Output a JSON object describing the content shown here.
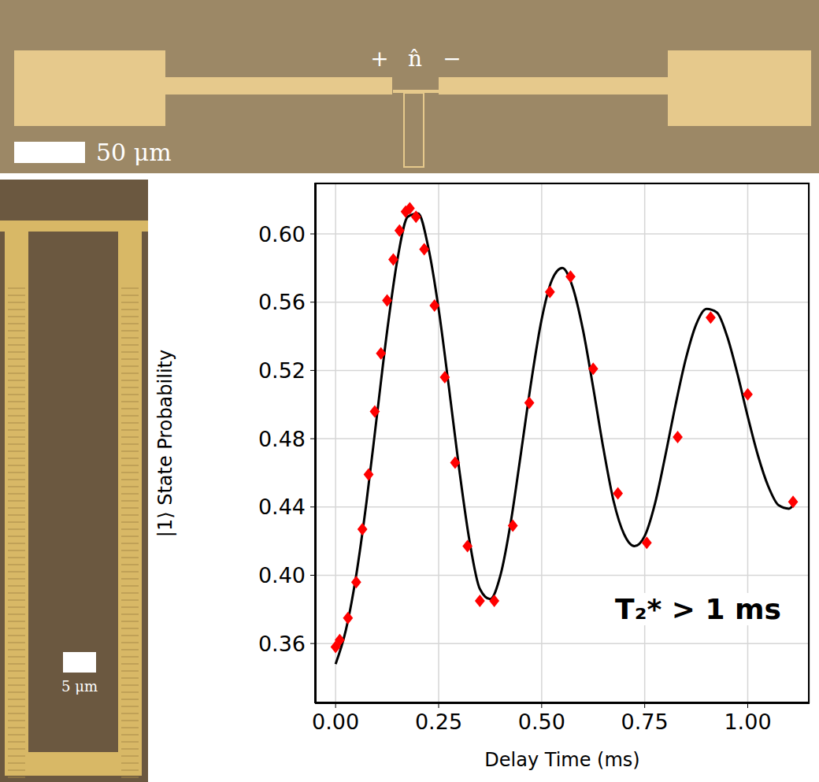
{
  "top_image": {
    "labels": [
      "+",
      "n̂",
      "−"
    ],
    "scale_bar": "50 μm"
  },
  "left_image": {
    "scale_bar": "5 μm"
  },
  "chart_data": {
    "type": "scatter",
    "x_label": "Delay Time (ms)",
    "y_label": "|1⟩ State Probability",
    "annotation": "T₂* > 1 ms",
    "xlim": [
      -0.05,
      1.15
    ],
    "ylim": [
      0.325,
      0.63
    ],
    "xticks": [
      {
        "value": 0,
        "label": "0.00"
      },
      {
        "value": 0.25,
        "label": "0.25"
      },
      {
        "value": 0.5,
        "label": "0.50"
      },
      {
        "value": 0.75,
        "label": "0.75"
      },
      {
        "value": 1,
        "label": "1.00"
      }
    ],
    "yticks": [
      0.36,
      {
        "value": 0.4,
        "label": "0.40"
      },
      0.44,
      0.48,
      0.52,
      0.56,
      {
        "value": 0.6,
        "label": "0.60"
      }
    ],
    "grid": true,
    "series": [
      {
        "type": "scatter",
        "color": "#ff0000",
        "marker": "diamond",
        "x": [
          0.0,
          0.01,
          0.03,
          0.05,
          0.065,
          0.08,
          0.095,
          0.11,
          0.125,
          0.14,
          0.155,
          0.17,
          0.18,
          0.195,
          0.215,
          0.24,
          0.265,
          0.29,
          0.32,
          0.35,
          0.385,
          0.43,
          0.47,
          0.52,
          0.57,
          0.625,
          0.685,
          0.755,
          0.83,
          0.91,
          1.0,
          1.11
        ],
        "values": [
          0.358,
          0.362,
          0.375,
          0.396,
          0.427,
          0.459,
          0.496,
          0.53,
          0.561,
          0.585,
          0.602,
          0.613,
          0.615,
          0.61,
          0.591,
          0.558,
          0.516,
          0.466,
          0.417,
          0.385,
          0.385,
          0.429,
          0.501,
          0.566,
          0.575,
          0.521,
          0.448,
          0.419,
          0.481,
          0.551,
          0.506,
          0.443
        ]
      },
      {
        "type": "line",
        "color": "#000000",
        "line_style": "solid",
        "x": [
          0.0,
          0.025,
          0.05,
          0.075,
          0.1,
          0.125,
          0.15,
          0.175,
          0.2,
          0.225,
          0.25,
          0.275,
          0.3,
          0.325,
          0.35,
          0.375,
          0.4,
          0.425,
          0.45,
          0.475,
          0.5,
          0.525,
          0.55,
          0.575,
          0.6,
          0.625,
          0.65,
          0.675,
          0.7,
          0.725,
          0.75,
          0.775,
          0.8,
          0.825,
          0.85,
          0.875,
          0.9,
          0.925,
          0.95,
          0.975,
          1.0,
          1.025,
          1.05,
          1.075,
          1.1,
          1.11
        ],
        "values": [
          0.348,
          0.368,
          0.4,
          0.443,
          0.493,
          0.543,
          0.585,
          0.61,
          0.612,
          0.592,
          0.556,
          0.51,
          0.462,
          0.42,
          0.392,
          0.386,
          0.4,
          0.431,
          0.472,
          0.514,
          0.55,
          0.573,
          0.58,
          0.569,
          0.544,
          0.51,
          0.474,
          0.443,
          0.424,
          0.417,
          0.423,
          0.442,
          0.47,
          0.5,
          0.527,
          0.547,
          0.556,
          0.554,
          0.54,
          0.518,
          0.493,
          0.47,
          0.452,
          0.441,
          0.439,
          0.441
        ]
      }
    ]
  }
}
